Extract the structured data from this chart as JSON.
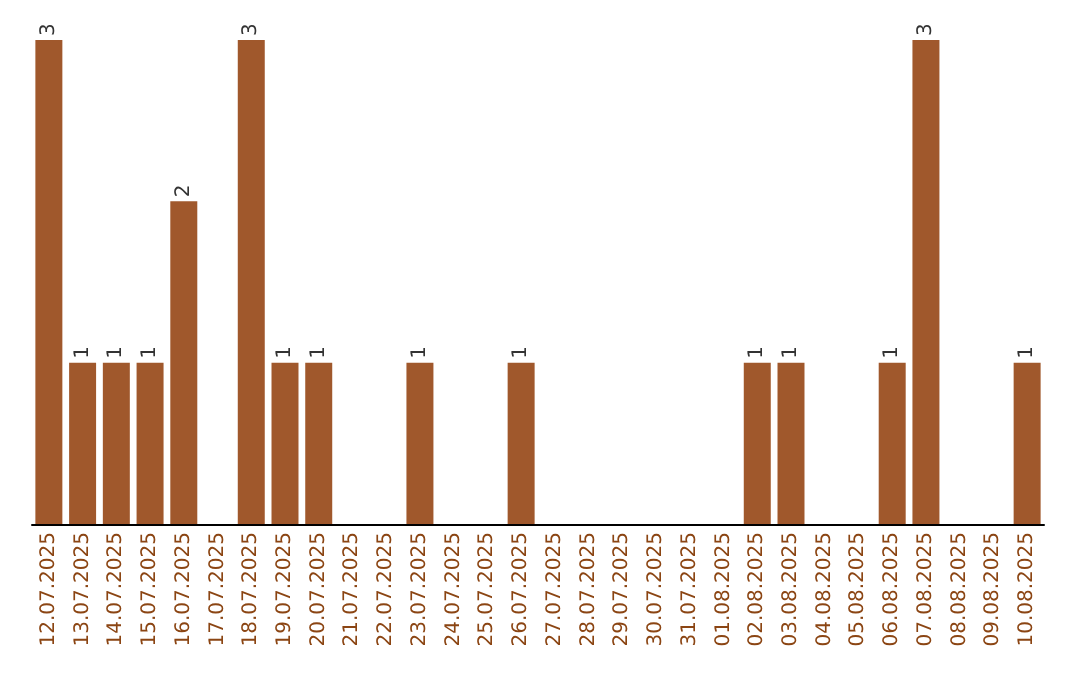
{
  "chart_data": {
    "type": "bar",
    "categories": [
      "12.07.2025",
      "13.07.2025",
      "14.07.2025",
      "15.07.2025",
      "16.07.2025",
      "17.07.2025",
      "18.07.2025",
      "19.07.2025",
      "20.07.2025",
      "21.07.2025",
      "22.07.2025",
      "23.07.2025",
      "24.07.2025",
      "25.07.2025",
      "26.07.2025",
      "27.07.2025",
      "28.07.2025",
      "29.07.2025",
      "30.07.2025",
      "31.07.2025",
      "01.08.2025",
      "02.08.2025",
      "03.08.2025",
      "04.08.2025",
      "05.08.2025",
      "06.08.2025",
      "07.08.2025",
      "08.08.2025",
      "09.08.2025",
      "10.08.2025"
    ],
    "values": [
      3,
      1,
      1,
      1,
      2,
      0,
      3,
      1,
      1,
      0,
      0,
      1,
      0,
      0,
      1,
      0,
      0,
      0,
      0,
      0,
      0,
      1,
      1,
      0,
      0,
      1,
      3,
      0,
      0,
      1
    ],
    "value_labels": [
      "3",
      "1",
      "1",
      "1",
      "2",
      null,
      "3",
      "1",
      "1",
      null,
      null,
      "1",
      null,
      null,
      "1",
      null,
      null,
      null,
      null,
      null,
      null,
      "1",
      "1",
      null,
      null,
      "1",
      "3",
      null,
      null,
      "1"
    ],
    "color": "#a0582c",
    "tick_labels": "x"
  }
}
